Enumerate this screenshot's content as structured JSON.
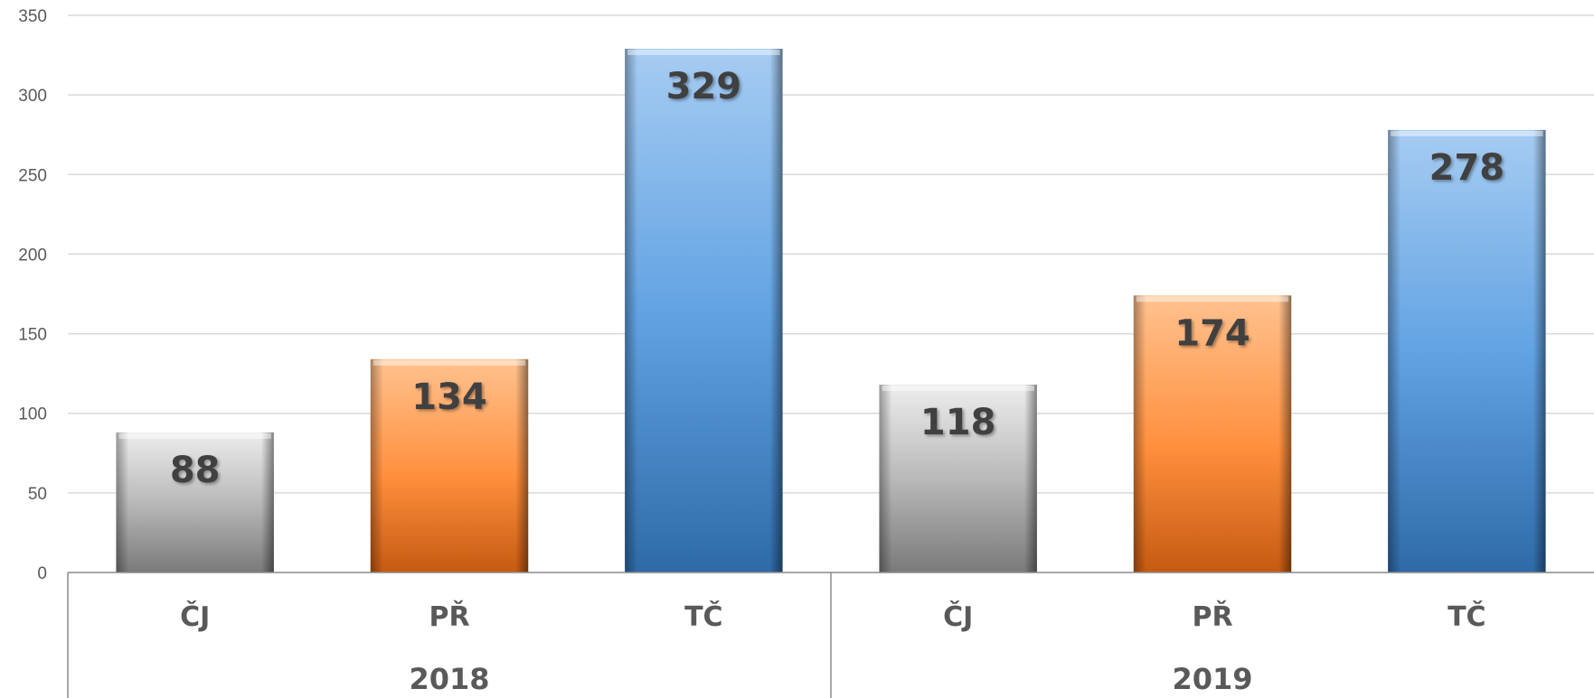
{
  "chart_data": {
    "type": "bar",
    "groups": [
      {
        "label": "2018",
        "categories": [
          "ČJ",
          "PŘ",
          "TČ"
        ],
        "values": [
          88,
          134,
          329
        ]
      },
      {
        "label": "2019",
        "categories": [
          "ČJ",
          "PŘ",
          "TČ"
        ],
        "values": [
          118,
          174,
          278
        ]
      }
    ],
    "category_colors": {
      "ČJ": "#9e9e9e",
      "PŘ": "#f5893a",
      "TČ": "#5b9bd5"
    },
    "ylim": [
      0,
      350
    ],
    "yticks": [
      0,
      50,
      100,
      150,
      200,
      250,
      300,
      350
    ],
    "grid": true,
    "legend": "none",
    "data_labels": true
  }
}
